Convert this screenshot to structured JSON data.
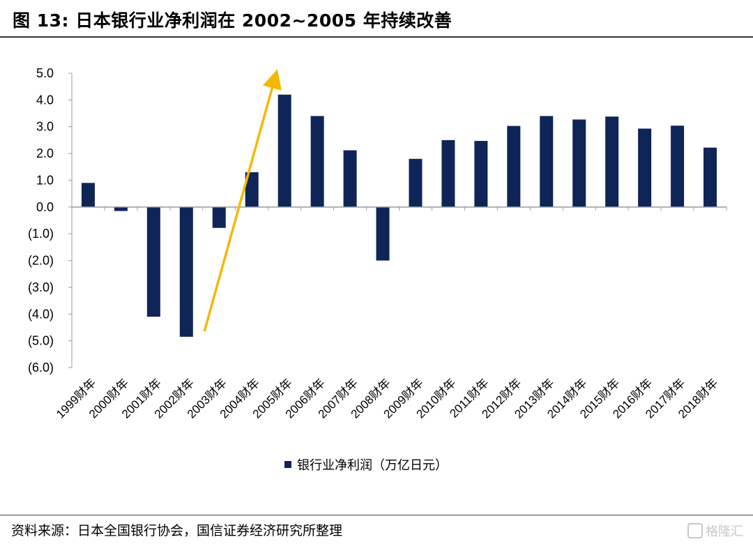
{
  "header": {
    "title": "图 13:  日本银行业净利润在 2002~2005 年持续改善"
  },
  "footer": {
    "source": "资料来源：日本全国银行协会，国信证券经济研究所整理",
    "watermark": "格隆汇"
  },
  "chart_data": {
    "type": "bar",
    "categories": [
      "1999财年",
      "2000财年",
      "2001财年",
      "2002财年",
      "2003财年",
      "2004财年",
      "2005财年",
      "2006财年",
      "2007财年",
      "2008财年",
      "2009财年",
      "2010财年",
      "2011财年",
      "2012财年",
      "2013财年",
      "2014财年",
      "2015财年",
      "2016财年",
      "2017财年",
      "2018财年"
    ],
    "series": [
      {
        "name": "银行业净利润（万亿日元）",
        "values": [
          0.9,
          -0.15,
          -4.1,
          -4.85,
          -0.78,
          1.3,
          4.2,
          3.4,
          2.12,
          -2.0,
          1.8,
          2.5,
          2.47,
          3.03,
          3.4,
          3.27,
          3.38,
          2.93,
          3.04,
          2.22
        ]
      }
    ],
    "yticks": [
      "5.0",
      "4.0",
      "3.0",
      "2.0",
      "1.0",
      "0.0",
      "(1.0)",
      "(2.0)",
      "(3.0)",
      "(4.0)",
      "(5.0)",
      "(6.0)"
    ],
    "ylim": [
      -6,
      5
    ],
    "bar_color": "#0f2557",
    "arrow_color": "#f5b800",
    "legend_position": "bottom"
  }
}
